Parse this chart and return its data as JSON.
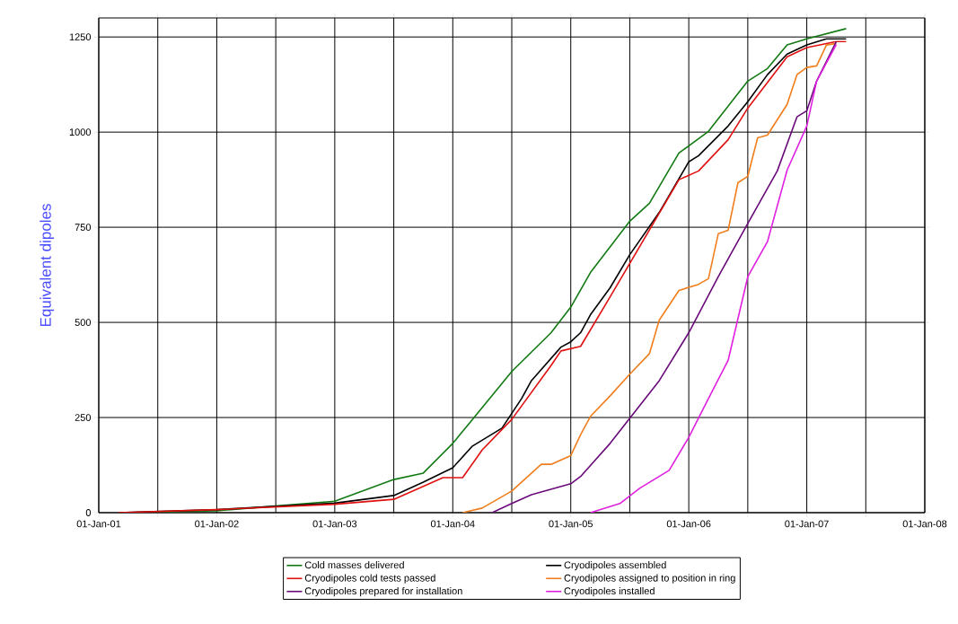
{
  "chart_data": {
    "type": "line",
    "ylabel": "Equivalent dipoles",
    "xlim": [
      "2001-01-01",
      "2008-01-01"
    ],
    "ylim": [
      0,
      1300
    ],
    "yticks": [
      0,
      250,
      500,
      750,
      1000,
      1250
    ],
    "xticks": [
      {
        "value": "2001-01-01",
        "label": "01-Jan-01"
      },
      {
        "value": "2001-07-01",
        "label": null
      },
      {
        "value": "2002-01-01",
        "label": "01-Jan-02"
      },
      {
        "value": "2002-07-01",
        "label": null
      },
      {
        "value": "2003-01-01",
        "label": "01-Jan-03"
      },
      {
        "value": "2003-07-01",
        "label": null
      },
      {
        "value": "2004-01-01",
        "label": "01-Jan-04"
      },
      {
        "value": "2004-07-01",
        "label": null
      },
      {
        "value": "2005-01-01",
        "label": "01-Jan-05"
      },
      {
        "value": "2005-07-01",
        "label": null
      },
      {
        "value": "2006-01-01",
        "label": "01-Jan-06"
      },
      {
        "value": "2006-07-01",
        "label": null
      },
      {
        "value": "2007-01-01",
        "label": "01-Jan-07"
      },
      {
        "value": "2007-07-01",
        "label": null
      },
      {
        "value": "2008-01-01",
        "label": "01-Jan-08"
      }
    ],
    "grid": true,
    "legend": "bottom",
    "marker": "none",
    "line_style": "solid",
    "series": [
      {
        "name": "Cold masses delivered",
        "color": "#127a12",
        "x": [
          "2001-03",
          "2002-01",
          "2003-01",
          "2003-07",
          "2003-10",
          "2004-01",
          "2004-03",
          "2004-07",
          "2004-11",
          "2005-01",
          "2005-03",
          "2005-07",
          "2005-09",
          "2005-12",
          "2006-03",
          "2006-07",
          "2006-09",
          "2006-11",
          "2007-01",
          "2007-05"
        ],
        "values": [
          0,
          5,
          30,
          87,
          104,
          182,
          245,
          371,
          473,
          540,
          631,
          766,
          813,
          945,
          1002,
          1134,
          1167,
          1229,
          1245,
          1272
        ]
      },
      {
        "name": "Cryodipoles assembled",
        "color": "#000000",
        "x": [
          "2001-03",
          "2002-01",
          "2003-01",
          "2003-07",
          "2003-10",
          "2004-01",
          "2004-03",
          "2004-06",
          "2004-08",
          "2004-09",
          "2004-12",
          "2005-01",
          "2005-02",
          "2005-03",
          "2005-05",
          "2005-07",
          "2005-10",
          "2006-01",
          "2006-02",
          "2006-05",
          "2006-07",
          "2006-09",
          "2006-11",
          "2007-01",
          "2007-03",
          "2007-05"
        ],
        "values": [
          0,
          8,
          25,
          45,
          80,
          118,
          175,
          222,
          300,
          347,
          435,
          449,
          473,
          520,
          591,
          678,
          789,
          922,
          938,
          1016,
          1080,
          1151,
          1205,
          1229,
          1245,
          1245
        ]
      },
      {
        "name": "Cryodipoles cold tests passed",
        "color": "#e01010",
        "x": [
          "2001-03",
          "2002-01",
          "2003-01",
          "2003-07",
          "2003-12",
          "2004-02",
          "2004-04",
          "2004-07",
          "2004-11",
          "2004-12",
          "2005-02",
          "2005-05",
          "2005-07",
          "2005-12",
          "2006-02",
          "2006-05",
          "2006-07",
          "2006-11",
          "2007-01",
          "2007-04",
          "2007-05"
        ],
        "values": [
          0,
          8,
          22,
          35,
          92,
          92,
          165,
          245,
          387,
          425,
          437,
          567,
          655,
          875,
          898,
          980,
          1063,
          1198,
          1222,
          1238,
          1238
        ]
      },
      {
        "name": "Cryodipoles assigned to position in ring",
        "color": "#f07e1c",
        "x": [
          "2004-02",
          "2004-04",
          "2004-07",
          "2004-10",
          "2004-11",
          "2005-01",
          "2005-02",
          "2005-03",
          "2005-05",
          "2005-07",
          "2005-09",
          "2005-10",
          "2005-12",
          "2006-02",
          "2006-03",
          "2006-04",
          "2006-05",
          "2006-06",
          "2006-07",
          "2006-08",
          "2006-09",
          "2006-11",
          "2006-12",
          "2007-01",
          "2007-02",
          "2007-03",
          "2007-04"
        ],
        "values": [
          0,
          12,
          57,
          127,
          127,
          150,
          205,
          253,
          307,
          364,
          418,
          506,
          584,
          600,
          615,
          733,
          742,
          867,
          884,
          985,
          992,
          1073,
          1151,
          1170,
          1174,
          1229,
          1233
        ]
      },
      {
        "name": "Cryodipoles prepared for installation",
        "color": "#6a0a7a",
        "x": [
          "2004-05",
          "2004-07",
          "2004-09",
          "2005-01",
          "2005-02",
          "2005-05",
          "2005-10",
          "2006-01",
          "2006-04",
          "2006-07",
          "2006-10",
          "2006-12",
          "2007-01",
          "2007-02",
          "2007-04"
        ],
        "values": [
          0,
          24,
          47,
          76,
          95,
          182,
          347,
          473,
          620,
          760,
          898,
          1040,
          1056,
          1134,
          1238
        ]
      },
      {
        "name": "Cryodipoles installed",
        "color": "#e020e0",
        "x": [
          "2005-03",
          "2005-06",
          "2005-08",
          "2005-11",
          "2006-01",
          "2006-03",
          "2006-05",
          "2006-07",
          "2006-09",
          "2006-11",
          "2007-01",
          "2007-02",
          "2007-04"
        ],
        "values": [
          0,
          24,
          64,
          111,
          198,
          300,
          400,
          620,
          712,
          900,
          1016,
          1134,
          1230
        ]
      }
    ]
  }
}
